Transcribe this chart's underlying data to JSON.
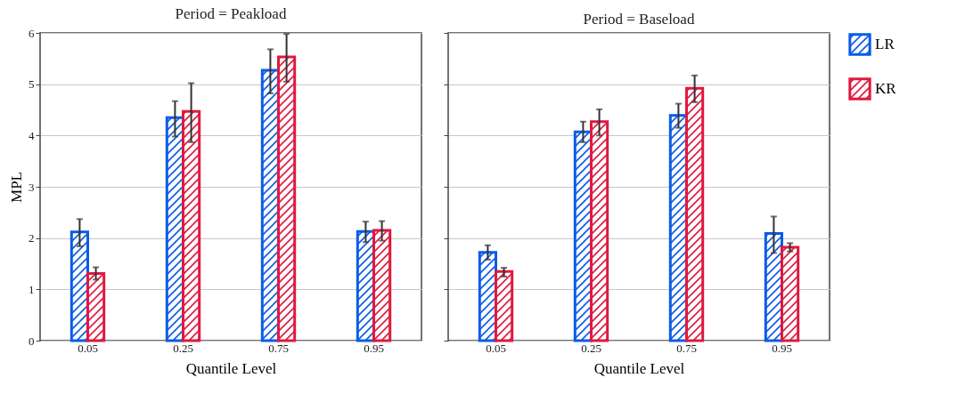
{
  "chart_data": [
    {
      "type": "bar",
      "title": "Period = Peakload",
      "xlabel": "Quantile Level",
      "ylabel": "MPL",
      "categories": [
        "0.05",
        "0.25",
        "0.75",
        "0.95"
      ],
      "ylim": [
        0,
        6
      ],
      "yticks": [
        0,
        1,
        2,
        3,
        4,
        5,
        6
      ],
      "grid": "y",
      "legend": "right",
      "series": [
        {
          "name": "LR",
          "color": "#0a5ce6",
          "values": [
            2.12,
            4.35,
            5.27,
            2.13
          ],
          "errors": [
            [
              1.84,
              2.37
            ],
            [
              3.98,
              4.67
            ],
            [
              4.82,
              5.68
            ],
            [
              1.92,
              2.32
            ]
          ]
        },
        {
          "name": "KR",
          "color": "#e0193f",
          "values": [
            1.31,
            4.47,
            5.53,
            2.15
          ],
          "errors": [
            [
              1.19,
              1.43
            ],
            [
              3.87,
              5.02
            ],
            [
              5.05,
              5.98
            ],
            [
              1.95,
              2.33
            ]
          ]
        }
      ]
    },
    {
      "type": "bar",
      "title": "Period = Baseload",
      "xlabel": "Quantile Level",
      "categories": [
        "0.05",
        "0.25",
        "0.75",
        "0.95"
      ],
      "ylim": [
        0,
        6
      ],
      "yticks": [
        0,
        1,
        2,
        3,
        4,
        5,
        6
      ],
      "grid": "y",
      "legend": "right",
      "tick_labels": "x",
      "series": [
        {
          "name": "LR",
          "color": "#0a5ce6",
          "values": [
            1.72,
            4.07,
            4.39,
            2.09
          ],
          "errors": [
            [
              1.58,
              1.86
            ],
            [
              3.87,
              4.27
            ],
            [
              4.15,
              4.62
            ],
            [
              1.71,
              2.42
            ]
          ]
        },
        {
          "name": "KR",
          "color": "#e0193f",
          "values": [
            1.35,
            4.27,
            4.92,
            1.82
          ],
          "errors": [
            [
              1.25,
              1.42
            ],
            [
              4.0,
              4.51
            ],
            [
              4.65,
              5.17
            ],
            [
              1.74,
              1.9
            ]
          ]
        }
      ]
    }
  ]
}
